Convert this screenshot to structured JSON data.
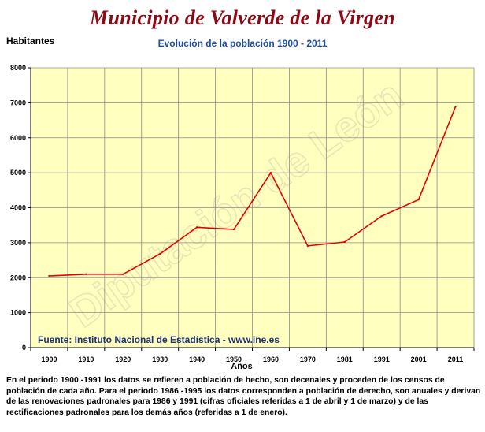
{
  "title": "Municipio de Valverde de la Virgen",
  "subtitle": "Evolución de la población 1900 - 2011",
  "watermark": "Diputación de León",
  "source": "Fuente: Instituto Nacional de Estadística - www.ine.es",
  "note": "En el periodo 1900 -1991 los datos se refieren a población de hecho, son decenales y proceden de los censos de población de cada año. Para el periodo 1986 -1995 los datos corresponden a población de derecho, son anuales y derivan de las renovaciones padronales para 1986 y 1991 (cifras oficiales referidas a 1 de abril y 1 de marzo) y de las rectificaciones padronales para los demás años (referidas a 1 de enero).",
  "colors": {
    "line": "#e60000",
    "plot_background": "#ffffc0",
    "grid": "#8c8c8c",
    "title": "#8b0a16",
    "subtitle": "#1f4fa0"
  },
  "chart_data": {
    "type": "line",
    "title": "Municipio de Valverde de la Virgen",
    "subtitle": "Evolución de la población 1900 - 2011",
    "xlabel": "Años",
    "ylabel": "Habitantes",
    "categories": [
      "1900",
      "1910",
      "1920",
      "1930",
      "1940",
      "1950",
      "1960",
      "1970",
      "1981",
      "1991",
      "2001",
      "2011"
    ],
    "series": [
      {
        "values": [
          2050,
          2100,
          2100,
          2680,
          3440,
          3380,
          5000,
          2910,
          3020,
          3760,
          4230,
          6890
        ]
      }
    ],
    "ylim": [
      0,
      8000
    ],
    "yticks": [
      0,
      1000,
      2000,
      3000,
      4000,
      5000,
      6000,
      7000,
      8000
    ],
    "grid": true,
    "legend": "none"
  }
}
